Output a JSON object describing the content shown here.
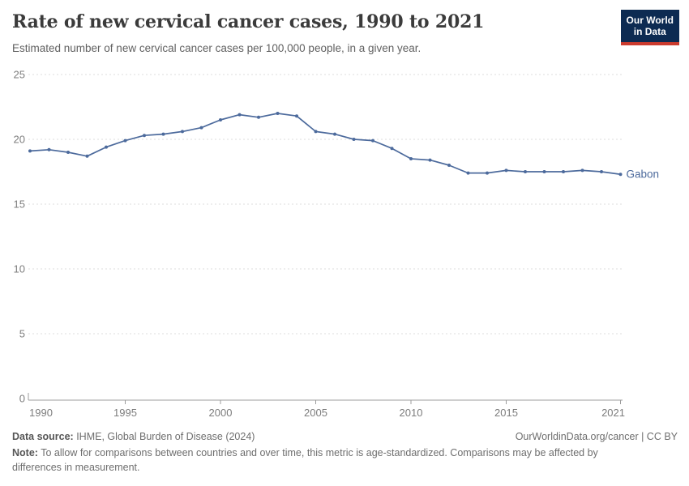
{
  "header": {
    "title": "Rate of new cervical cancer cases, 1990 to 2021",
    "subtitle": "Estimated number of new cervical cancer cases per 100,000 people, in a given year.",
    "logo": {
      "line1": "Our World",
      "line2": "in Data",
      "bg_color": "#0d2b52",
      "bar_color": "#cb3b2e"
    }
  },
  "chart_data": {
    "type": "line",
    "x": [
      1990,
      1991,
      1992,
      1993,
      1994,
      1995,
      1996,
      1997,
      1998,
      1999,
      2000,
      2001,
      2002,
      2003,
      2004,
      2005,
      2006,
      2007,
      2008,
      2009,
      2010,
      2011,
      2012,
      2013,
      2014,
      2015,
      2016,
      2017,
      2018,
      2019,
      2020,
      2021
    ],
    "series": [
      {
        "name": "Gabon",
        "color": "#4c6a9c",
        "values": [
          19.1,
          19.2,
          19.0,
          18.7,
          19.4,
          19.9,
          20.3,
          20.4,
          20.6,
          20.9,
          21.5,
          21.9,
          21.7,
          22.0,
          21.8,
          20.6,
          20.4,
          20.0,
          19.9,
          19.3,
          18.5,
          18.4,
          18.0,
          17.4,
          17.4,
          17.6,
          17.5,
          17.5,
          17.5,
          17.6,
          17.5,
          17.3
        ]
      }
    ],
    "title": "Rate of new cervical cancer cases, 1990 to 2021",
    "xlabel": "",
    "ylabel": "",
    "ylim": [
      0,
      25
    ],
    "yticks": [
      0,
      5,
      10,
      15,
      20,
      25
    ],
    "xticks": [
      1990,
      1995,
      2000,
      2005,
      2010,
      2015,
      2021
    ],
    "grid": "horizontal-dashed",
    "legend_position": "end-of-line-label",
    "grid_color": "#dcdcdc",
    "axis_color": "#9c9c9c",
    "tick_label_color": "#7d7d7d"
  },
  "footer": {
    "datasource_label": "Data source:",
    "datasource_value": " IHME, Global Burden of Disease (2024)",
    "rights": "OurWorldinData.org/cancer | CC BY",
    "note_label": "Note:",
    "note_value": " To allow for comparisons between countries and over time, this metric is age-standardized. Comparisons may be affected by differences in measurement."
  }
}
